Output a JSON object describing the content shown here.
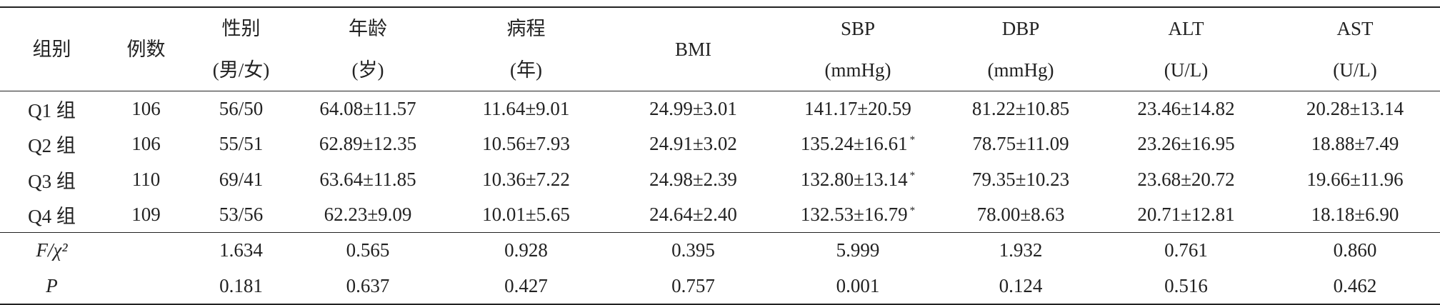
{
  "table": {
    "columns": [
      {
        "lines": [
          "组别"
        ]
      },
      {
        "lines": [
          "例数"
        ]
      },
      {
        "lines": [
          "性别",
          "(男/女)"
        ]
      },
      {
        "lines": [
          "年龄",
          "(岁)"
        ]
      },
      {
        "lines": [
          "病程",
          "(年)"
        ]
      },
      {
        "lines": [
          "BMI"
        ]
      },
      {
        "lines": [
          "SBP",
          "(mmHg)"
        ]
      },
      {
        "lines": [
          "DBP",
          "(mmHg)"
        ]
      },
      {
        "lines": [
          "ALT",
          "(U/L)"
        ]
      },
      {
        "lines": [
          "AST",
          "(U/L)"
        ]
      }
    ],
    "rows": [
      {
        "group": "Q1 组",
        "n": "106",
        "cells": [
          "56/50",
          "64.08±11.57",
          "11.64±9.01",
          "24.99±3.01",
          "141.17±20.59",
          "81.22±10.85",
          "23.46±14.82",
          "20.28±13.14"
        ]
      },
      {
        "group": "Q2 组",
        "n": "106",
        "cells": [
          "55/51",
          "62.89±12.35",
          "10.56±7.93",
          "24.91±3.02",
          {
            "text": "135.24±16.61",
            "note": "*"
          },
          "78.75±11.09",
          "23.26±16.95",
          "18.88±7.49"
        ]
      },
      {
        "group": "Q3 组",
        "n": "110",
        "cells": [
          "69/41",
          "63.64±11.85",
          "10.36±7.22",
          "24.98±2.39",
          {
            "text": "132.80±13.14",
            "note": "*"
          },
          "79.35±10.23",
          "23.68±20.72",
          "19.66±11.96"
        ]
      },
      {
        "group": "Q4 组",
        "n": "109",
        "cells": [
          "53/56",
          "62.23±9.09",
          "10.01±5.65",
          "24.64±2.40",
          {
            "text": "132.53±16.79",
            "note": "*"
          },
          "78.00±8.63",
          "20.71±12.81",
          "18.18±6.90"
        ]
      }
    ],
    "stats": [
      {
        "label": "F/χ²",
        "values": [
          "1.634",
          "0.565",
          "0.928",
          "0.395",
          "5.999",
          "1.932",
          "0.761",
          "0.860"
        ]
      },
      {
        "label": "P",
        "values": [
          "0.181",
          "0.637",
          "0.427",
          "0.757",
          "0.001",
          "0.124",
          "0.516",
          "0.462"
        ]
      }
    ]
  }
}
